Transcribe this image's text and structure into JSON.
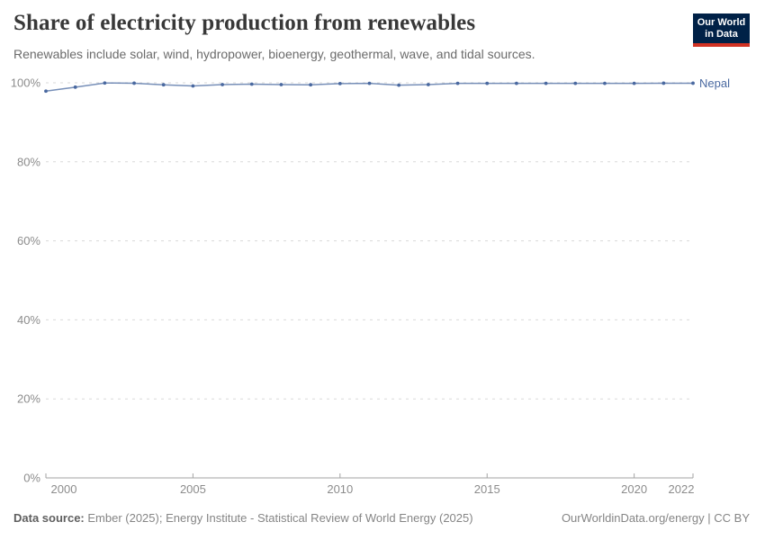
{
  "header": {
    "title": "Share of electricity production from renewables",
    "subtitle": "Renewables include solar, wind, hydropower, bioenergy, geothermal, wave, and tidal sources.",
    "logo": {
      "line1": "Our World",
      "line2": "in Data"
    }
  },
  "chart_data": {
    "type": "line",
    "title": "Share of electricity production from renewables",
    "x": [
      2000,
      2001,
      2002,
      2003,
      2004,
      2005,
      2006,
      2007,
      2008,
      2009,
      2010,
      2011,
      2012,
      2013,
      2014,
      2015,
      2016,
      2017,
      2018,
      2019,
      2020,
      2021,
      2022
    ],
    "series": [
      {
        "name": "Nepal",
        "color": "#4a69a0",
        "values": [
          97.9,
          98.9,
          99.95,
          99.9,
          99.5,
          99.2,
          99.55,
          99.65,
          99.55,
          99.5,
          99.8,
          99.85,
          99.4,
          99.55,
          99.85,
          99.85,
          99.85,
          99.85,
          99.85,
          99.85,
          99.85,
          99.9,
          99.9
        ]
      }
    ],
    "xlabel": "",
    "ylabel": "",
    "xlim": [
      2000,
      2022
    ],
    "ylim": [
      0,
      100
    ],
    "x_ticks": [
      {
        "value": 2000,
        "label": "2000"
      },
      {
        "value": 2005,
        "label": "2005"
      },
      {
        "value": 2010,
        "label": "2010"
      },
      {
        "value": 2015,
        "label": "2015"
      },
      {
        "value": 2020,
        "label": "2020"
      },
      {
        "value": 2022,
        "label": "2022"
      }
    ],
    "y_ticks": [
      {
        "value": 0,
        "label": "0%"
      },
      {
        "value": 20,
        "label": "20%"
      },
      {
        "value": 40,
        "label": "40%"
      },
      {
        "value": 60,
        "label": "60%"
      },
      {
        "value": 80,
        "label": "80%"
      },
      {
        "value": 100,
        "label": "100%"
      }
    ],
    "grid": "horizontal-dashed",
    "legend_position": "end-of-line"
  },
  "footer": {
    "source_label": "Data source:",
    "source_text": " Ember (2025); Energy Institute - Statistical Review of World Energy (2025)",
    "rights": "OurWorldinData.org/energy | CC BY"
  },
  "colors": {
    "line": "#4a69a0",
    "grid": "#d9d9d9",
    "axis": "#a3a3a3",
    "tick_text": "#8c8c8c",
    "logo_bg": "#002147",
    "logo_accent": "#d13223"
  }
}
